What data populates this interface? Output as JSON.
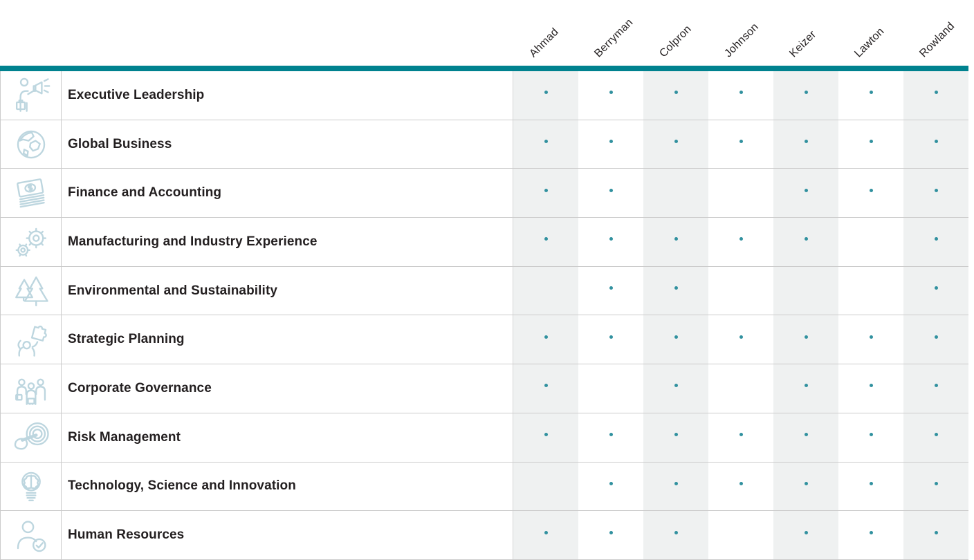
{
  "matrix": {
    "members": [
      "Ahmad",
      "Berryman",
      "Colpron",
      "Johnson",
      "Keizer",
      "Lawton",
      "Rowland"
    ],
    "rows": [
      {
        "skill": "Executive Leadership",
        "icon": "megaphone-person",
        "marks": [
          1,
          1,
          1,
          1,
          1,
          1,
          1
        ]
      },
      {
        "skill": "Global Business",
        "icon": "globe",
        "marks": [
          1,
          1,
          1,
          1,
          1,
          1,
          1
        ]
      },
      {
        "skill": "Finance and Accounting",
        "icon": "money-stack",
        "marks": [
          1,
          1,
          0,
          0,
          1,
          1,
          1
        ]
      },
      {
        "skill": "Manufacturing and Industry Experience",
        "icon": "gears",
        "marks": [
          1,
          1,
          1,
          1,
          1,
          0,
          1
        ]
      },
      {
        "skill": "Environmental and Sustainability",
        "icon": "pine-trees",
        "marks": [
          0,
          1,
          1,
          0,
          0,
          0,
          1
        ]
      },
      {
        "skill": "Strategic Planning",
        "icon": "puzzle-person",
        "marks": [
          1,
          1,
          1,
          1,
          1,
          1,
          1
        ]
      },
      {
        "skill": "Corporate Governance",
        "icon": "people-group",
        "marks": [
          1,
          0,
          1,
          0,
          1,
          1,
          1
        ]
      },
      {
        "skill": "Risk Management",
        "icon": "target-press",
        "marks": [
          1,
          1,
          1,
          1,
          1,
          1,
          1
        ]
      },
      {
        "skill": "Technology, Science and Innovation",
        "icon": "lightbulb-brain",
        "marks": [
          0,
          1,
          1,
          1,
          1,
          1,
          1
        ]
      },
      {
        "skill": "Human Resources",
        "icon": "person-check",
        "marks": [
          1,
          1,
          1,
          0,
          1,
          1,
          1
        ]
      }
    ],
    "colors": {
      "accent_teal": "#00828F",
      "dot_teal": "#31919F",
      "shaded_column": "#EFF1F1",
      "grid_line": "#CBCBCB",
      "icon_blue": "#BDD6DF",
      "label_text": "#231F20"
    }
  },
  "chart_data": {
    "type": "table",
    "title": "",
    "categories": [
      "Executive Leadership",
      "Global Business",
      "Finance and Accounting",
      "Manufacturing and Industry Experience",
      "Environmental and Sustainability",
      "Strategic Planning",
      "Corporate Governance",
      "Risk Management",
      "Technology, Science and Innovation",
      "Human Resources"
    ],
    "series": [
      {
        "name": "Ahmad",
        "values": [
          1,
          1,
          1,
          1,
          0,
          1,
          1,
          1,
          0,
          1
        ]
      },
      {
        "name": "Berryman",
        "values": [
          1,
          1,
          1,
          1,
          1,
          1,
          0,
          1,
          1,
          1
        ]
      },
      {
        "name": "Colpron",
        "values": [
          1,
          1,
          0,
          1,
          1,
          1,
          1,
          1,
          1,
          1
        ]
      },
      {
        "name": "Johnson",
        "values": [
          1,
          1,
          0,
          1,
          0,
          1,
          0,
          1,
          1,
          0
        ]
      },
      {
        "name": "Keizer",
        "values": [
          1,
          1,
          1,
          1,
          0,
          1,
          1,
          1,
          1,
          1
        ]
      },
      {
        "name": "Lawton",
        "values": [
          1,
          1,
          1,
          0,
          0,
          1,
          1,
          1,
          1,
          1
        ]
      },
      {
        "name": "Rowland",
        "values": [
          1,
          1,
          1,
          1,
          1,
          1,
          1,
          1,
          1,
          1
        ]
      }
    ],
    "mark_glyph": "dot",
    "legend_position": "none",
    "grid": "row-separators, alternating shaded columns"
  }
}
